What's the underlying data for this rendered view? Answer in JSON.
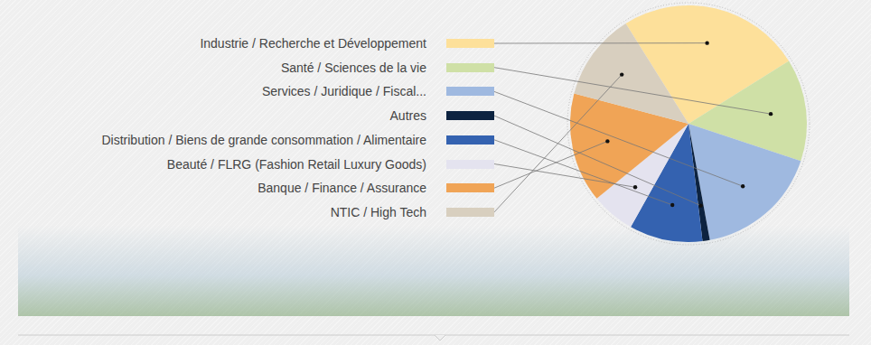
{
  "chart_data": {
    "type": "pie",
    "categories": [
      "Industrie / Recherche et Développement",
      "Santé / Sciences de la vie",
      "Services / Juridique / Fiscal...",
      "Autres",
      "Distribution / Biens de grande consommation / Alimentaire",
      "Beauté / FLRG (Fashion Retail Luxury Goods)",
      "Banque / Finance / Assurance",
      "NTIC / High Tech"
    ],
    "values": [
      25,
      14,
      17,
      1,
      10,
      6,
      15,
      12
    ],
    "colors": [
      "#fde09a",
      "#cfe0a6",
      "#9fb9e0",
      "#0d2340",
      "#3462b0",
      "#e4e3ef",
      "#f0a456",
      "#d8cfbf"
    ],
    "legend": "left"
  }
}
